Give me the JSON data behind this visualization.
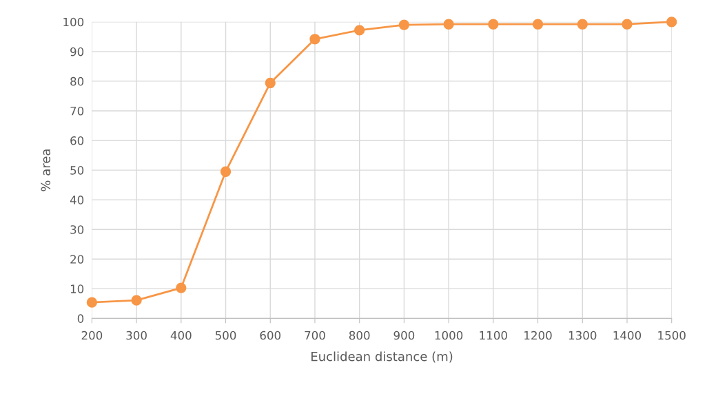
{
  "chart_data": {
    "type": "line",
    "xlabel": "Euclidean distance (m)",
    "ylabel": "% area",
    "x": [
      200,
      300,
      400,
      500,
      600,
      700,
      800,
      900,
      1000,
      1100,
      1200,
      1300,
      1400,
      1500
    ],
    "series": [
      {
        "color": "#f79646",
        "values": [
          5.4,
          6.1,
          10.3,
          49.5,
          79.4,
          94.2,
          97.2,
          99,
          99.2,
          99.2,
          99.2,
          99.2,
          99.2,
          100
        ]
      }
    ],
    "xlim": [
      200,
      1500
    ],
    "xticks": [
      200,
      300,
      400,
      500,
      600,
      700,
      800,
      900,
      1000,
      1100,
      1200,
      1300,
      1400,
      1500
    ],
    "ylim": [
      0,
      100
    ],
    "yticks": [
      0,
      10,
      20,
      30,
      40,
      50,
      60,
      70,
      80,
      90,
      100
    ],
    "grid": true,
    "marker": "circle",
    "line_style": "solid"
  }
}
